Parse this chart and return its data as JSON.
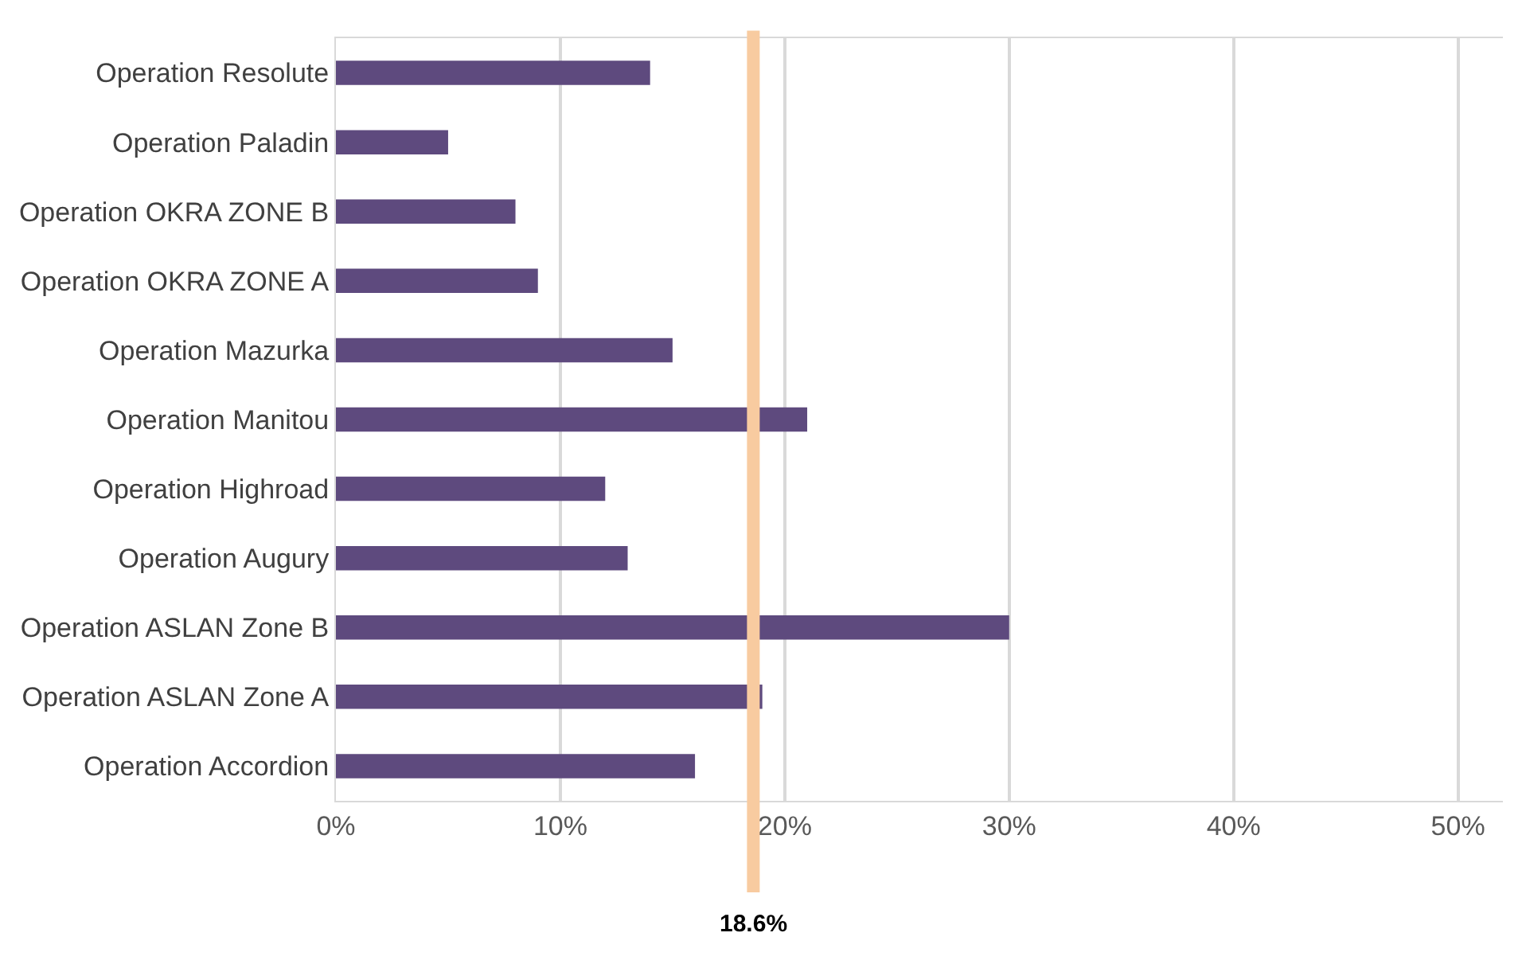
{
  "chart_data": {
    "type": "bar",
    "orientation": "horizontal",
    "categories": [
      "Operation Resolute",
      "Operation Paladin",
      "Operation OKRA ZONE B",
      "Operation OKRA ZONE A",
      "Operation Mazurka",
      "Operation Manitou",
      "Operation Highroad",
      "Operation Augury",
      "Operation ASLAN Zone B",
      "Operation ASLAN Zone A",
      "Operation Accordion"
    ],
    "values": [
      14,
      5,
      8,
      9,
      15,
      21,
      12,
      13,
      30,
      19,
      16
    ],
    "color": "#5e4a7e",
    "xlim": [
      0,
      52
    ],
    "xticks": [
      {
        "value": 0,
        "label": "0%"
      },
      {
        "value": 10,
        "label": "10%"
      },
      {
        "value": 20,
        "label": "20%"
      },
      {
        "value": 30,
        "label": "30%"
      },
      {
        "value": 40,
        "label": "40%"
      },
      {
        "value": 50,
        "label": "50%"
      }
    ],
    "grid": "x",
    "ref_lines": [
      {
        "axis": "x",
        "value": 18.6,
        "label": "18.6%",
        "color": "#f8cba0"
      }
    ]
  }
}
